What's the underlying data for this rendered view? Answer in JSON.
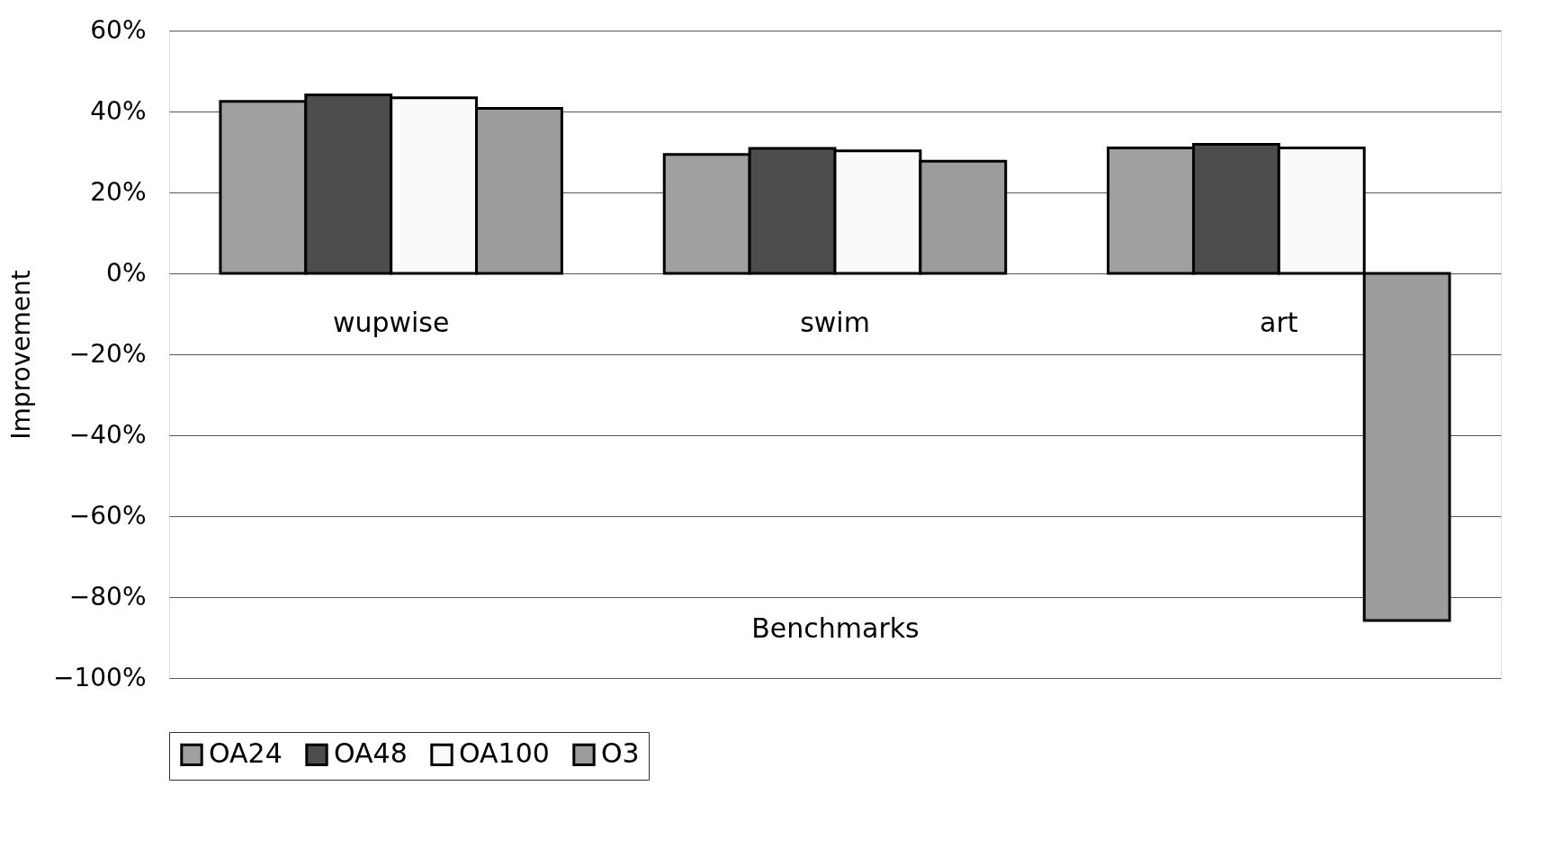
{
  "chart_data": {
    "type": "bar",
    "xlabel": "Benchmarks",
    "ylabel": "Improvement",
    "categories": [
      "wupwise",
      "swim",
      "art"
    ],
    "series": [
      {
        "name": "OA24",
        "color": "#a0a0a0",
        "values": [
          42.5,
          29.4,
          31.0
        ]
      },
      {
        "name": "OA48",
        "color": "#4d4d4d",
        "values": [
          44.1,
          30.9,
          31.9
        ]
      },
      {
        "name": "OA100",
        "color": "#fafafa",
        "values": [
          43.4,
          30.3,
          31.0
        ]
      },
      {
        "name": "O3",
        "color": "#9c9c9c",
        "values": [
          40.8,
          27.7,
          -85.8
        ]
      }
    ],
    "ylim": [
      -100,
      60
    ],
    "yticks": [
      {
        "value": -100,
        "label": "−100%"
      },
      {
        "value": -80,
        "label": "−80%"
      },
      {
        "value": -60,
        "label": "−60%"
      },
      {
        "value": -40,
        "label": "−40%"
      },
      {
        "value": -20,
        "label": "−20%"
      },
      {
        "value": 0,
        "label": "0%"
      },
      {
        "value": 20,
        "label": "20%"
      },
      {
        "value": 40,
        "label": "40%"
      },
      {
        "value": 60,
        "label": "60%"
      }
    ],
    "grid": "y",
    "legend": "bottom"
  }
}
